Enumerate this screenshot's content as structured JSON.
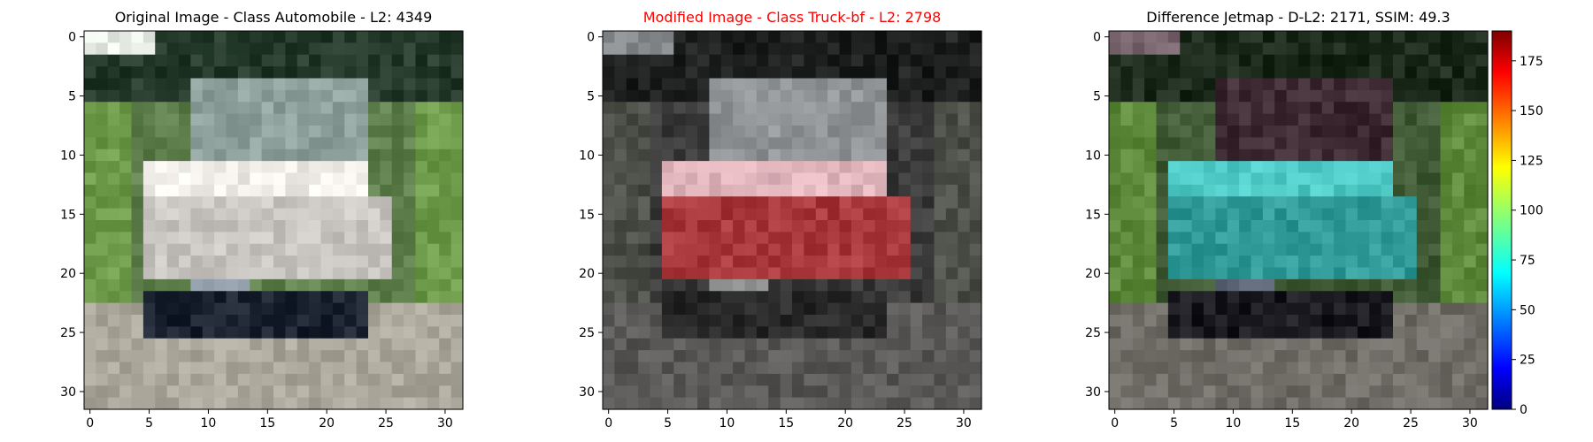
{
  "chart_data": [
    {
      "type": "heatmap",
      "title": "Original Image - Class Automobile - L2: 4349",
      "title_color": "#000000",
      "xlim": [
        -0.5,
        31.5
      ],
      "ylim": [
        31.5,
        -0.5
      ],
      "xticks": [
        0,
        5,
        10,
        15,
        20,
        25,
        30
      ],
      "yticks": [
        0,
        5,
        10,
        15,
        20,
        25,
        30
      ],
      "scene": {
        "palette": {
          "bg": "#5f7f4c",
          "road": "#aba79b",
          "body": "#c9c6c1",
          "body_top": "#f1ede9",
          "windshield": "#8ea19c",
          "bumper": "#1b2330",
          "grille": "#8a95a2",
          "sky": "#e8ece6",
          "dark_tree": "#253a2a",
          "light_tree": "#6d9b4a"
        }
      }
    },
    {
      "type": "heatmap",
      "title": "Modified Image - Class Truck-bf - L2: 2798",
      "title_color": "#ff0000",
      "xlim": [
        -0.5,
        31.5
      ],
      "ylim": [
        31.5,
        -0.5
      ],
      "xticks": [
        0,
        5,
        10,
        15,
        20,
        25,
        30
      ],
      "yticks": [
        0,
        5,
        10,
        15,
        20,
        25,
        30
      ],
      "scene": {
        "palette": {
          "bg": "#3a3b3a",
          "road": "#5a5957",
          "body": "#a8383c",
          "body_top": "#e2b6bd",
          "windshield": "#8f9396",
          "bumper": "#2b2a2b",
          "grille": "#8d8f8e",
          "sky": "#8a8d8f",
          "dark_tree": "#1e1f1f",
          "light_tree": "#4d5048"
        }
      }
    },
    {
      "type": "heatmap",
      "title": "Difference Jetmap - D-L2: 2171, SSIM: 49.3",
      "title_color": "#000000",
      "xlim": [
        -0.5,
        31.5
      ],
      "ylim": [
        31.5,
        -0.5
      ],
      "xticks": [
        0,
        5,
        10,
        15,
        20,
        25,
        30
      ],
      "yticks": [
        0,
        5,
        10,
        15,
        20,
        25,
        30
      ],
      "scene": {
        "palette": {
          "bg": "#3f5a35",
          "road": "#6f6d66",
          "body": "#2f9a97",
          "body_top": "#4fc9c5",
          "windshield": "#3d2a33",
          "bumper": "#1a1a20",
          "grille": "#5e6677",
          "sky": "#7a6770",
          "dark_tree": "#1c2a1c",
          "light_tree": "#5e8a3c"
        }
      },
      "colorbar": {
        "range": [
          0,
          190
        ],
        "ticks": [
          0,
          25,
          50,
          75,
          100,
          125,
          150,
          175
        ],
        "colormap": "jet"
      }
    }
  ]
}
